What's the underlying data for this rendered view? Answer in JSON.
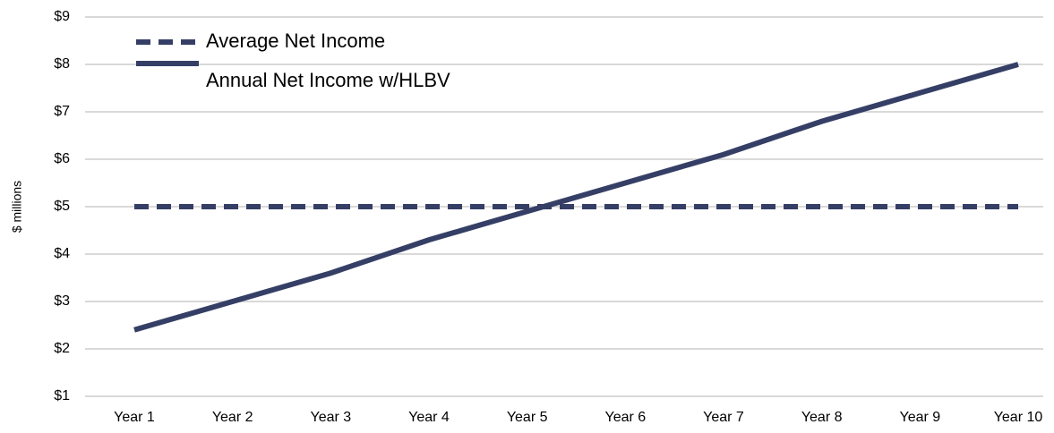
{
  "chart_data": {
    "type": "line",
    "y_label": "$ millions",
    "categories": [
      "Year 1",
      "Year 2",
      "Year 3",
      "Year 4",
      "Year 5",
      "Year 6",
      "Year 7",
      "Year 8",
      "Year 9",
      "Year 10"
    ],
    "series": [
      {
        "name": "Average Net Income",
        "color": "#353f66",
        "dash": true,
        "values": [
          5,
          5,
          5,
          5,
          5,
          5,
          5,
          5,
          5,
          5
        ]
      },
      {
        "name": "Annual Net Income w/HLBV",
        "color": "#353f66",
        "dash": false,
        "values": [
          2.4,
          3.0,
          3.6,
          4.3,
          4.9,
          5.5,
          6.1,
          6.8,
          7.4,
          8.0
        ]
      }
    ],
    "ylim": [
      1,
      9
    ],
    "yticks": [
      {
        "value": 1,
        "label": "$1"
      },
      {
        "value": 2,
        "label": "$2"
      },
      {
        "value": 3,
        "label": "$3"
      },
      {
        "value": 4,
        "label": "$4"
      },
      {
        "value": 5,
        "label": "$5"
      },
      {
        "value": 6,
        "label": "$6"
      },
      {
        "value": 7,
        "label": "$7"
      },
      {
        "value": 8,
        "label": "$8"
      },
      {
        "value": 9,
        "label": "$9"
      }
    ],
    "grid": true,
    "legend": "top-left"
  }
}
